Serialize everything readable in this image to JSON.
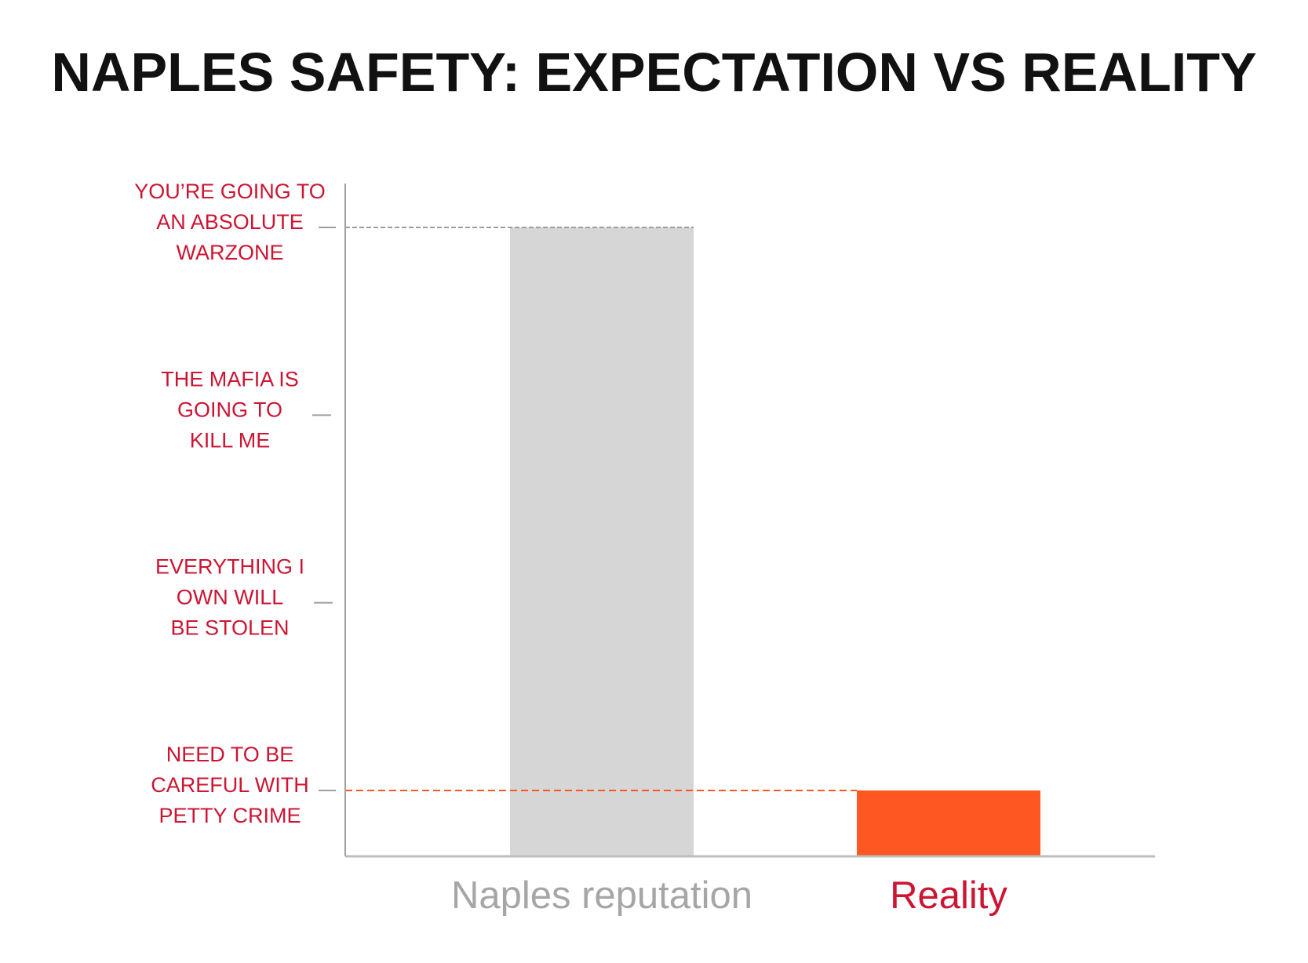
{
  "title": "NAPLES SAFETY: EXPECTATION VS REALITY",
  "colors": {
    "annotation_red": "#cc1533",
    "reputation_bar": "#d6d6d6",
    "reality_bar": "#ff5722",
    "reputation_label": "#a6a6a6",
    "reality_label": "#cc1533",
    "axis": "#bdbdbd",
    "reputation_ref_line": "#9e9e9e",
    "reality_ref_line": "#ff5722"
  },
  "chart_data": {
    "type": "bar",
    "title": "NAPLES SAFETY: EXPECTATION VS REALITY",
    "categories": [
      "Naples reputation",
      "Reality"
    ],
    "values": [
      4,
      1
    ],
    "ylim": [
      0,
      4
    ],
    "y_ticks": [
      {
        "value": 1,
        "lines": [
          "NEED TO BE",
          "CAREFUL WITH",
          "PETTY CRIME"
        ]
      },
      {
        "value": 2,
        "lines": [
          "EVERYTHING I",
          "OWN WILL",
          "BE STOLEN"
        ]
      },
      {
        "value": 3,
        "lines": [
          "THE MAFIA IS",
          "GOING TO",
          "KILL ME"
        ]
      },
      {
        "value": 4,
        "lines": [
          "YOU’RE GOING TO",
          "AN ABSOLUTE",
          "WARZONE"
        ]
      }
    ],
    "reference_lines": [
      {
        "value": 4,
        "style": "dashed",
        "color": "#9e9e9e"
      },
      {
        "value": 1,
        "style": "dashed",
        "color": "#ff5722"
      }
    ],
    "grid": false,
    "legend": "none"
  }
}
